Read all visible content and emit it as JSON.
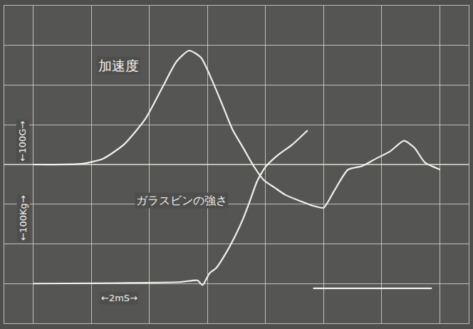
{
  "chart_data": {
    "type": "line",
    "xlim": [
      -1,
      15
    ],
    "xticks": [
      0,
      2,
      4,
      6,
      8,
      10,
      12,
      14
    ],
    "ylim": [
      -400,
      400
    ],
    "yticks": [
      -400,
      -300,
      -200,
      -100,
      0,
      100,
      200,
      300,
      400
    ],
    "y2lim": [
      -50,
      350
    ],
    "grid": true,
    "tick_labels": false,
    "annotations": [
      "←100G→",
      "←100Kg→",
      "←2mS→"
    ],
    "series": [
      {
        "name": "加速度",
        "color": "#f0f0ec",
        "x": [
          0,
          1.69,
          2.41,
          3.13,
          3.86,
          4.46,
          4.94,
          5.37,
          5.78,
          6.14,
          6.51,
          6.87,
          7.23,
          7.59,
          7.95,
          8.31,
          8.67,
          9.16,
          9.64,
          10.0,
          10.36,
          10.84,
          11.33,
          11.81,
          12.29,
          12.77,
          13.13,
          13.49,
          14.02
        ],
        "values": [
          0,
          2,
          15,
          51,
          115,
          196,
          260,
          287,
          269,
          215,
          151,
          87,
          42,
          -4,
          -40,
          -58,
          -76,
          -91,
          -104,
          -109,
          -67,
          -13,
          -4,
          15,
          33,
          60,
          42,
          5,
          -13
        ]
      },
      {
        "name": "ガラスビンの強さ",
        "color": "#f0f0ec",
        "axis": "y2",
        "x": [
          0,
          5.06,
          5.66,
          5.83,
          6.07,
          6.31,
          6.63,
          6.94,
          7.23,
          7.47,
          7.71,
          8.0,
          8.43,
          8.92,
          9.45,
          9.55,
          9.64,
          13.73
        ],
        "values": [
          0,
          2,
          4,
          -2,
          13,
          20,
          38,
          59,
          82,
          105,
          129,
          147,
          162,
          175,
          193,
          null,
          -6,
          -6
        ]
      }
    ]
  }
}
